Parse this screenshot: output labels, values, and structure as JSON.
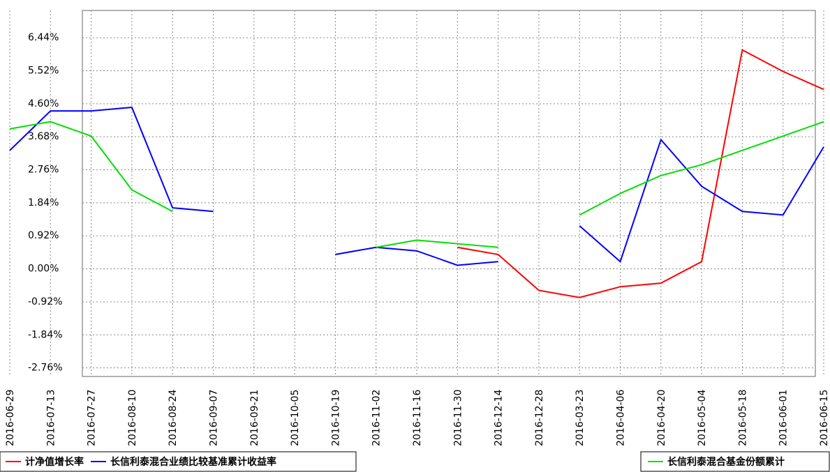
{
  "chart_data": {
    "type": "line",
    "categories": [
      "2016-06-29",
      "2016-07-13",
      "2016-07-27",
      "2016-08-10",
      "2016-08-24",
      "2016-09-07",
      "2016-09-21",
      "2016-10-05",
      "2016-10-19",
      "2016-11-02",
      "2016-11-16",
      "2016-11-30",
      "2016-12-14",
      "2016-12-28",
      "2016-03-23",
      "2016-04-06",
      "2016-04-20",
      "2016-05-04",
      "2016-05-18",
      "2016-06-01",
      "2016-06-15"
    ],
    "series": [
      {
        "name": "计净值增长率",
        "color": "#ff0000",
        "values": [
          null,
          null,
          null,
          null,
          null,
          null,
          null,
          null,
          null,
          null,
          null,
          0.6,
          0.4,
          -0.6,
          -0.8,
          -0.5,
          -0.4,
          0.2,
          6.1,
          5.5,
          5.0
        ]
      },
      {
        "name": "长信利泰混合业绩比较基准累计收益率",
        "color": "#0000ff",
        "values": [
          3.3,
          4.4,
          4.4,
          4.5,
          1.7,
          1.6,
          null,
          null,
          0.4,
          0.6,
          0.5,
          0.1,
          0.2,
          null,
          1.2,
          0.2,
          3.6,
          2.3,
          1.6,
          1.5,
          3.4
        ]
      },
      {
        "name": "长信利泰混合基金份额累计",
        "color": "#00e000",
        "values": [
          3.9,
          4.1,
          3.7,
          2.2,
          1.6,
          null,
          null,
          null,
          null,
          0.6,
          0.8,
          0.7,
          0.6,
          null,
          1.5,
          2.1,
          2.6,
          2.9,
          3.3,
          3.7,
          4.1
        ]
      }
    ],
    "ylim": [
      -3.0,
      7.2
    ],
    "yticks": [
      {
        "value": 6.44,
        "label": "6.44%"
      },
      {
        "value": 5.52,
        "label": "5.52%"
      },
      {
        "value": 4.6,
        "label": "4.60%"
      },
      {
        "value": 3.68,
        "label": "3.68%"
      },
      {
        "value": 2.76,
        "label": "2.76%"
      },
      {
        "value": 1.84,
        "label": "1.84%"
      },
      {
        "value": 0.92,
        "label": "0.92%"
      },
      {
        "value": 0.0,
        "label": "0.00%"
      },
      {
        "value": -0.92,
        "label": "-0.92%"
      },
      {
        "value": -1.84,
        "label": "-1.84%"
      },
      {
        "value": -2.76,
        "label": "-2.76%"
      }
    ],
    "grid": true
  }
}
